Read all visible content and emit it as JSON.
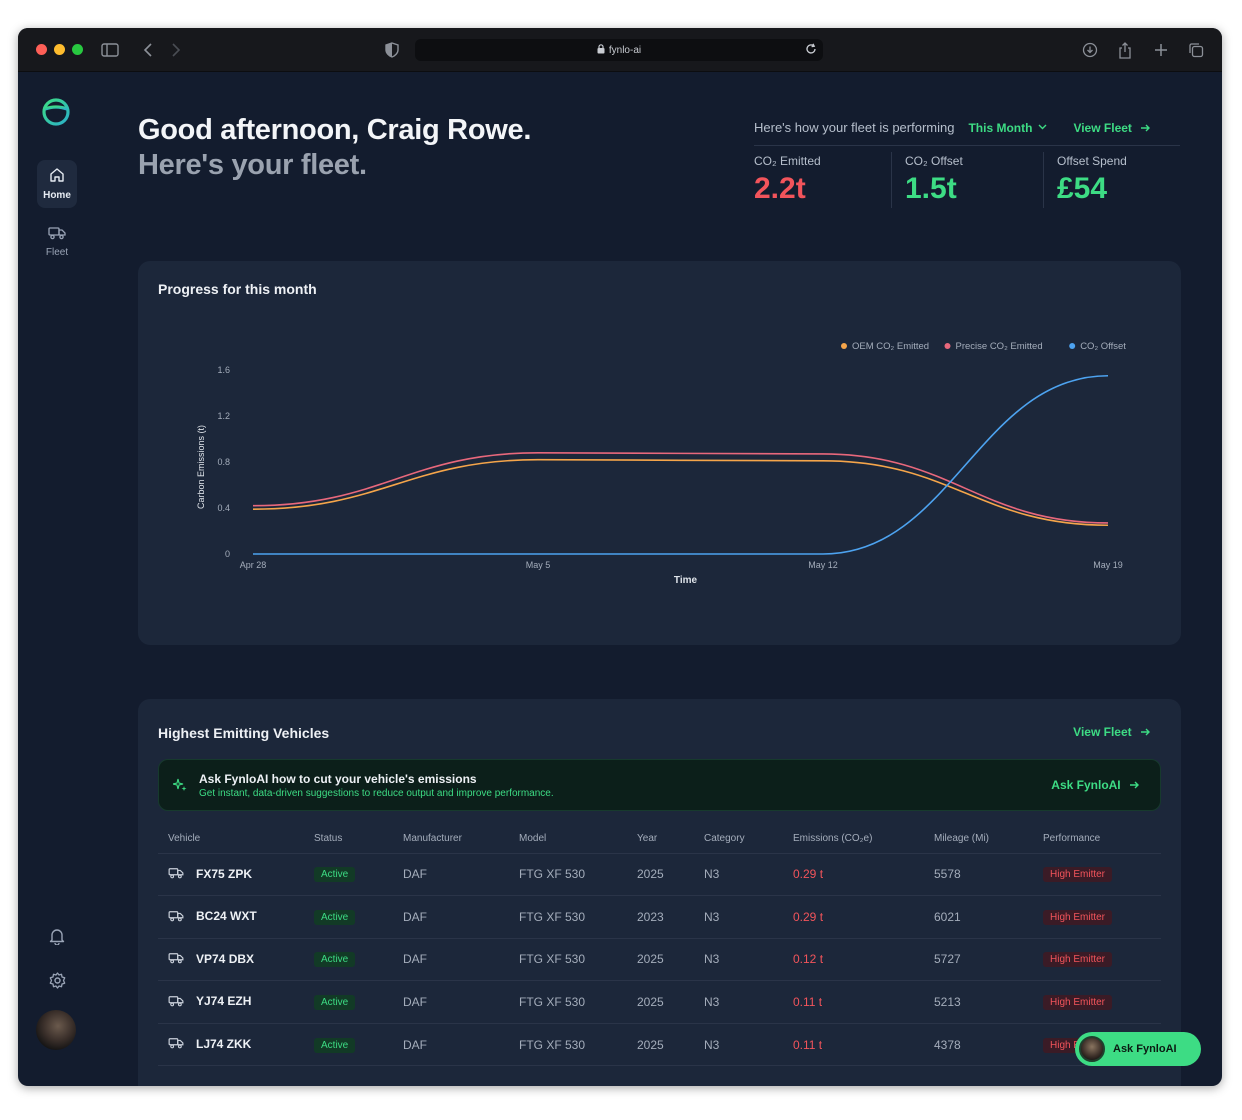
{
  "browser": {
    "url": "fynlo-ai",
    "traffic_colors": [
      "#fe5f57",
      "#febc2e",
      "#28c840"
    ]
  },
  "sidebar": {
    "items": [
      {
        "label": "Home",
        "icon": "home-icon",
        "active": true
      },
      {
        "label": "Fleet",
        "icon": "truck-icon",
        "active": false
      }
    ],
    "bottom_icons": [
      "bell-icon",
      "gear-icon",
      "avatar"
    ]
  },
  "greeting": {
    "line1": "Good afternoon, Craig Rowe.",
    "line2": "Here's your fleet."
  },
  "performance": {
    "heading": "Here's how your fleet is performing",
    "period": "This Month",
    "view_fleet": "View Fleet",
    "stats": [
      {
        "label": "CO₂ Emitted",
        "value": "2.2t",
        "color": "#f2545b"
      },
      {
        "label": "CO₂ Offset",
        "value": "1.5t",
        "color": "#3ddc84"
      },
      {
        "label": "Offset Spend",
        "value": "£54",
        "color": "#3ddc84"
      }
    ]
  },
  "progress": {
    "title": "Progress for this month",
    "chart_data": {
      "type": "line",
      "xlabel": "Time",
      "ylabel": "Carbon Emissions (t)",
      "x": [
        "Apr 28",
        "May 5",
        "May 12",
        "May 19"
      ],
      "y_ticks": [
        0,
        0.4,
        0.8,
        1.2,
        1.6
      ],
      "ylim": [
        0,
        1.6
      ],
      "legend_position": "top-right",
      "series": [
        {
          "name": "OEM CO₂ Emitted",
          "color": "#f5a54a",
          "values": [
            0.39,
            0.82,
            0.81,
            0.25
          ]
        },
        {
          "name": "Precise CO₂ Emitted",
          "color": "#e8687c",
          "values": [
            0.42,
            0.88,
            0.87,
            0.27
          ]
        },
        {
          "name": "CO₂ Offset",
          "color": "#4da3f0",
          "values": [
            0,
            0,
            0,
            1.55
          ]
        }
      ]
    }
  },
  "vehicles": {
    "title": "Highest Emitting Vehicles",
    "view_fleet": "View Fleet",
    "ask": {
      "title": "Ask FynloAI how to cut your vehicle's emissions",
      "subtitle": "Get instant, data-driven suggestions to reduce output and improve performance.",
      "button": "Ask FynloAI"
    },
    "columns": [
      "Vehicle",
      "Status",
      "Manufacturer",
      "Model",
      "Year",
      "Category",
      "Emissions (CO₂e)",
      "Mileage (Mi)",
      "Performance"
    ],
    "rows": [
      {
        "vehicle": "FX75 ZPK",
        "status": "Active",
        "manufacturer": "DAF",
        "model": "FTG XF 530",
        "year": "2025",
        "category": "N3",
        "emissions": "0.29 t",
        "mileage": "5578",
        "performance": "High Emitter"
      },
      {
        "vehicle": "BC24 WXT",
        "status": "Active",
        "manufacturer": "DAF",
        "model": "FTG XF 530",
        "year": "2023",
        "category": "N3",
        "emissions": "0.29 t",
        "mileage": "6021",
        "performance": "High Emitter"
      },
      {
        "vehicle": "VP74 DBX",
        "status": "Active",
        "manufacturer": "DAF",
        "model": "FTG XF 530",
        "year": "2025",
        "category": "N3",
        "emissions": "0.12 t",
        "mileage": "5727",
        "performance": "High Emitter"
      },
      {
        "vehicle": "YJ74 EZH",
        "status": "Active",
        "manufacturer": "DAF",
        "model": "FTG XF 530",
        "year": "2025",
        "category": "N3",
        "emissions": "0.11 t",
        "mileage": "5213",
        "performance": "High Emitter"
      },
      {
        "vehicle": "LJ74 ZKK",
        "status": "Active",
        "manufacturer": "DAF",
        "model": "FTG XF 530",
        "year": "2025",
        "category": "N3",
        "emissions": "0.11 t",
        "mileage": "4378",
        "performance": "High Emitter"
      }
    ]
  },
  "fab": {
    "label": "Ask FynloAI"
  }
}
